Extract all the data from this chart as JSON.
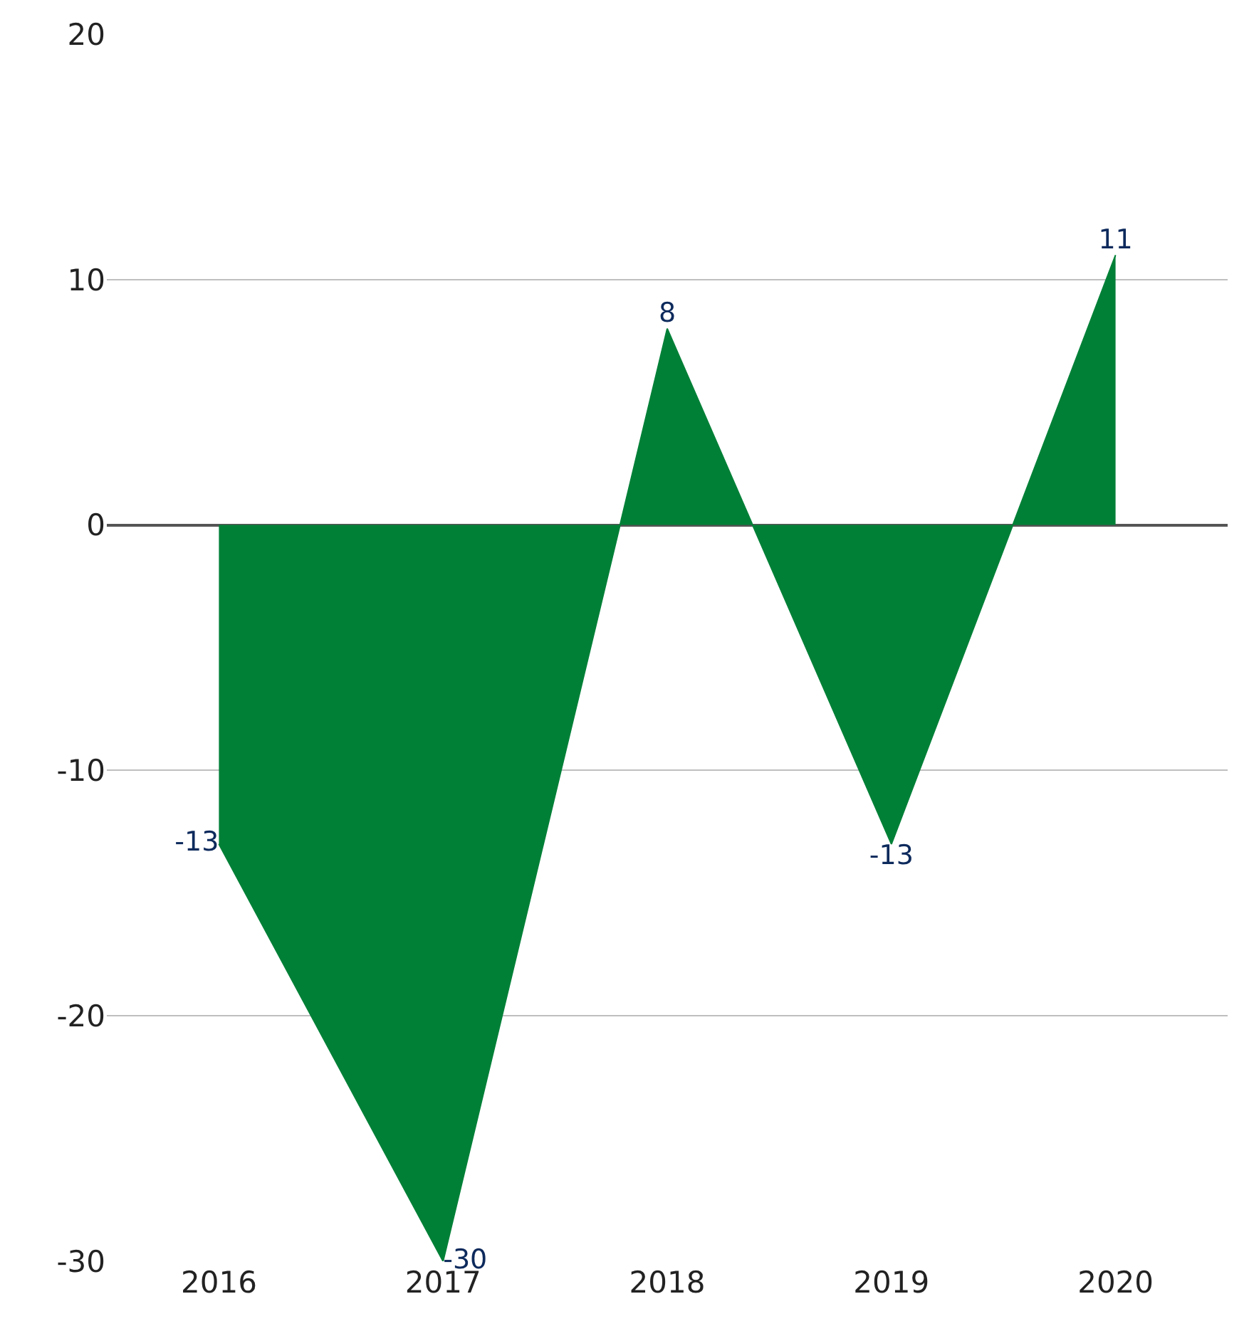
{
  "chart_data": {
    "type": "area",
    "categories": [
      "2016",
      "2017",
      "2018",
      "2019",
      "2020"
    ],
    "series": [
      {
        "color": "#008037",
        "values": [
          -13,
          -30,
          8,
          -13,
          11
        ]
      }
    ],
    "ylim": [
      -30,
      20
    ],
    "yticks": [
      -30,
      -20,
      -10,
      0,
      10,
      20
    ],
    "grid": "y",
    "data_labels": true,
    "legend": false
  }
}
